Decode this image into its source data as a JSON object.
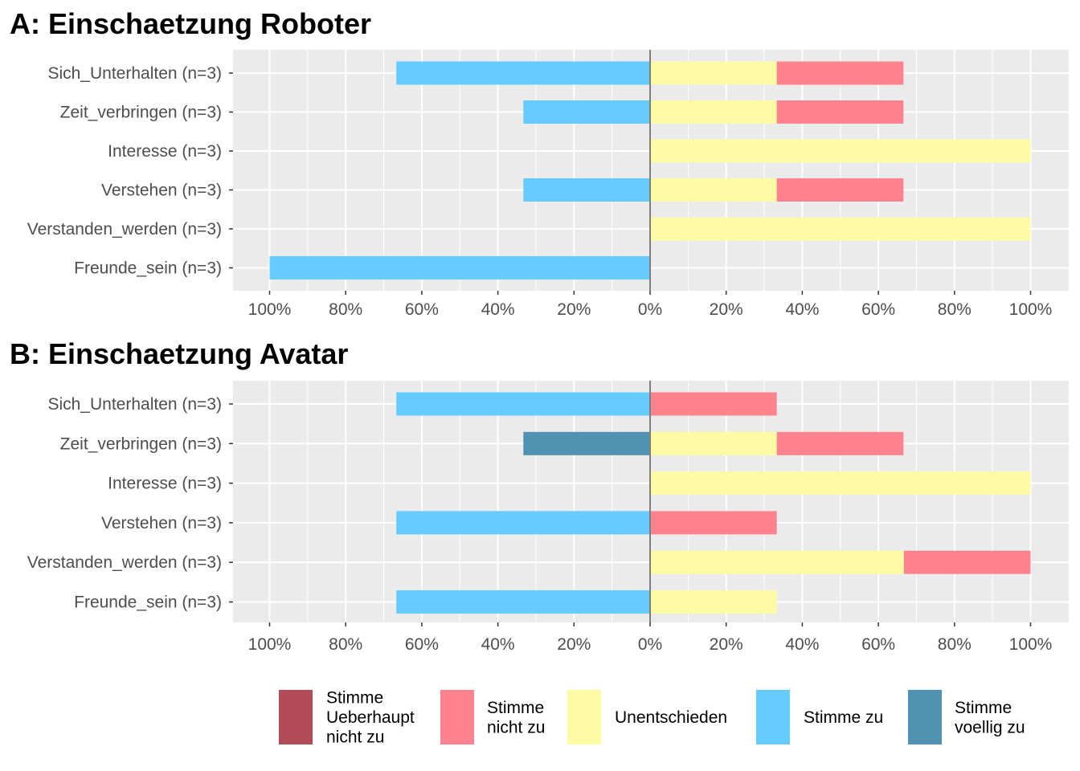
{
  "chart_data": {
    "type": "bar",
    "orientation": "horizontal",
    "layout": "diverging-stacked",
    "xlim": [
      -100,
      100
    ],
    "x_ticks": [
      -100,
      -80,
      -60,
      -40,
      -20,
      0,
      20,
      40,
      60,
      80,
      100
    ],
    "x_tick_labels": [
      "100%",
      "80%",
      "60%",
      "40%",
      "20%",
      "0%",
      "20%",
      "40%",
      "60%",
      "80%",
      "100%"
    ],
    "grid": true,
    "legend_position": "bottom",
    "categories": [
      "Sich_Unterhalten (n=3)",
      "Zeit_verbringen (n=3)",
      "Interesse (n=3)",
      "Verstehen (n=3)",
      "Verstanden_werden (n=3)",
      "Freunde_sein (n=3)"
    ],
    "legend": [
      {
        "key": "ueberhaupt",
        "lines": [
          "Stimme",
          "Ueberhaupt",
          "nicht zu"
        ],
        "color": "#B24B58"
      },
      {
        "key": "nicht",
        "lines": [
          "Stimme",
          "nicht zu"
        ],
        "color": "#FF838E"
      },
      {
        "key": "unent",
        "lines": [
          "Unentschieden"
        ],
        "color": "#FFFBA5"
      },
      {
        "key": "zu",
        "lines": [
          "Stimme zu"
        ],
        "color": "#66CCFF"
      },
      {
        "key": "voellig",
        "lines": [
          "Stimme",
          "voellig zu"
        ],
        "color": "#5192B3"
      }
    ],
    "panels": [
      {
        "title": "A: Einschaetzung Roboter",
        "rows": [
          {
            "ueberhaupt": 0,
            "nicht": 33.3,
            "unent": 33.3,
            "zu": 66.7,
            "voellig": 0
          },
          {
            "ueberhaupt": 0,
            "nicht": 33.3,
            "unent": 33.3,
            "zu": 33.3,
            "voellig": 0
          },
          {
            "ueberhaupt": 0,
            "nicht": 0,
            "unent": 100,
            "zu": 0,
            "voellig": 0
          },
          {
            "ueberhaupt": 0,
            "nicht": 33.3,
            "unent": 33.3,
            "zu": 33.3,
            "voellig": 0
          },
          {
            "ueberhaupt": 0,
            "nicht": 0,
            "unent": 100,
            "zu": 0,
            "voellig": 0
          },
          {
            "ueberhaupt": 0,
            "nicht": 0,
            "unent": 0,
            "zu": 100,
            "voellig": 0
          }
        ]
      },
      {
        "title": "B: Einschaetzung Avatar",
        "rows": [
          {
            "ueberhaupt": 0,
            "nicht": 33.3,
            "unent": 0,
            "zu": 66.7,
            "voellig": 0
          },
          {
            "ueberhaupt": 0,
            "nicht": 33.3,
            "unent": 33.3,
            "zu": 0,
            "voellig": 33.3
          },
          {
            "ueberhaupt": 0,
            "nicht": 0,
            "unent": 100,
            "zu": 0,
            "voellig": 0
          },
          {
            "ueberhaupt": 0,
            "nicht": 33.3,
            "unent": 0,
            "zu": 66.7,
            "voellig": 0
          },
          {
            "ueberhaupt": 0,
            "nicht": 33.3,
            "unent": 66.7,
            "zu": 0,
            "voellig": 0
          },
          {
            "ueberhaupt": 0,
            "nicht": 0,
            "unent": 33.3,
            "zu": 66.7,
            "voellig": 0
          }
        ]
      }
    ]
  }
}
